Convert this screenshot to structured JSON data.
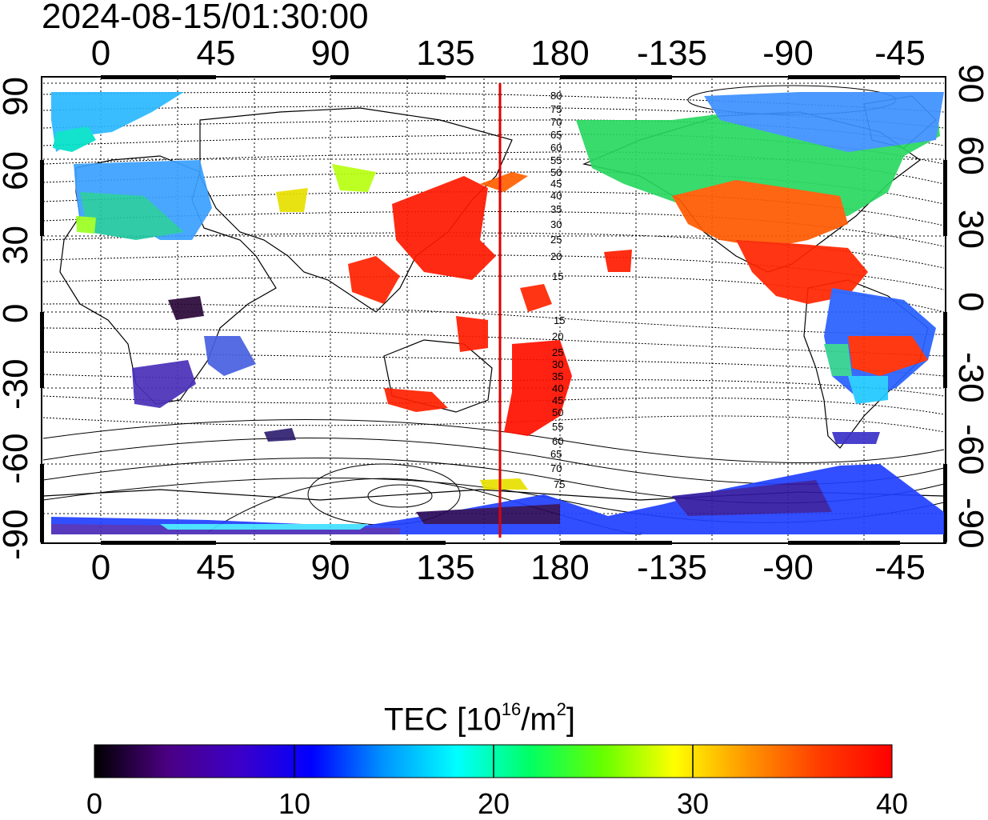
{
  "title": "2024-08-15/01:30:00",
  "map": {
    "lon_ticks": [
      "0",
      "45",
      "90",
      "135",
      "180",
      "-135",
      "-90",
      "-45"
    ],
    "lat_ticks": [
      "90",
      "60",
      "30",
      "0",
      "-30",
      "-60",
      "-90"
    ],
    "meridian_marker_lon": 155,
    "marker_color": "#e00000",
    "contour_labels_north": [
      "80",
      "75",
      "70",
      "65",
      "60",
      "55",
      "50",
      "45",
      "40",
      "35",
      "30",
      "25",
      "20",
      "15"
    ],
    "contour_labels_south": [
      "15",
      "20",
      "25",
      "30",
      "35",
      "40",
      "45",
      "50",
      "55",
      "60",
      "65",
      "70",
      "75"
    ]
  },
  "colorbar": {
    "label_text": "TEC  [10",
    "label_exp1": "16",
    "label_mid": "/m",
    "label_exp2": "2",
    "label_end": "]",
    "ticks": [
      "0",
      "10",
      "20",
      "30",
      "40"
    ],
    "colors": [
      "#000000",
      "#4b0082",
      "#3c00c8",
      "#0000ff",
      "#0096ff",
      "#00ffff",
      "#00ff64",
      "#64ff00",
      "#ffff00",
      "#ff9600",
      "#ff3c00",
      "#ff0000"
    ]
  }
}
